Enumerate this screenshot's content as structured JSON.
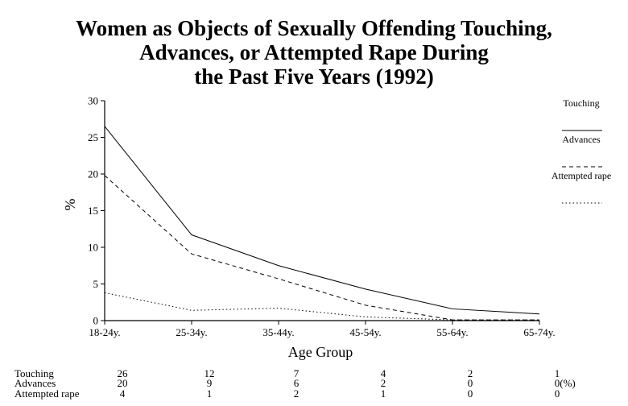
{
  "chart_data": {
    "type": "line",
    "title_lines": [
      "Women as Objects of Sexually Offending Touching,",
      "Advances, or Attempted Rape During",
      "the Past Five Years (1992)"
    ],
    "xlabel": "Age Group",
    "ylabel": "%",
    "ylim": [
      0,
      30
    ],
    "yticks": [
      0,
      5,
      10,
      15,
      20,
      25,
      30
    ],
    "categories": [
      "18-24y.",
      "25-34y.",
      "35-44y.",
      "45-54y.",
      "55-64y.",
      "65-74y."
    ],
    "series": [
      {
        "name": "Touching",
        "values": [
          26.5,
          11.7,
          7.5,
          4.3,
          1.6,
          0.9
        ],
        "table_values": [
          "26",
          "12",
          "7",
          "4",
          "2",
          "1"
        ],
        "style": "solid"
      },
      {
        "name": "Advances",
        "values": [
          19.8,
          9.1,
          5.7,
          2.1,
          0.1,
          0.1
        ],
        "table_values": [
          "20",
          "9",
          "6",
          "2",
          "0",
          "0"
        ],
        "style": "dashed"
      },
      {
        "name": "Attempted rape",
        "values": [
          3.8,
          1.4,
          1.7,
          0.5,
          0.1,
          0.1
        ],
        "table_values": [
          "4",
          "1",
          "2",
          "1",
          "0",
          "0"
        ],
        "style": "dotted"
      }
    ],
    "table_unit": "(%)",
    "legend_position": "right",
    "grid": false
  }
}
